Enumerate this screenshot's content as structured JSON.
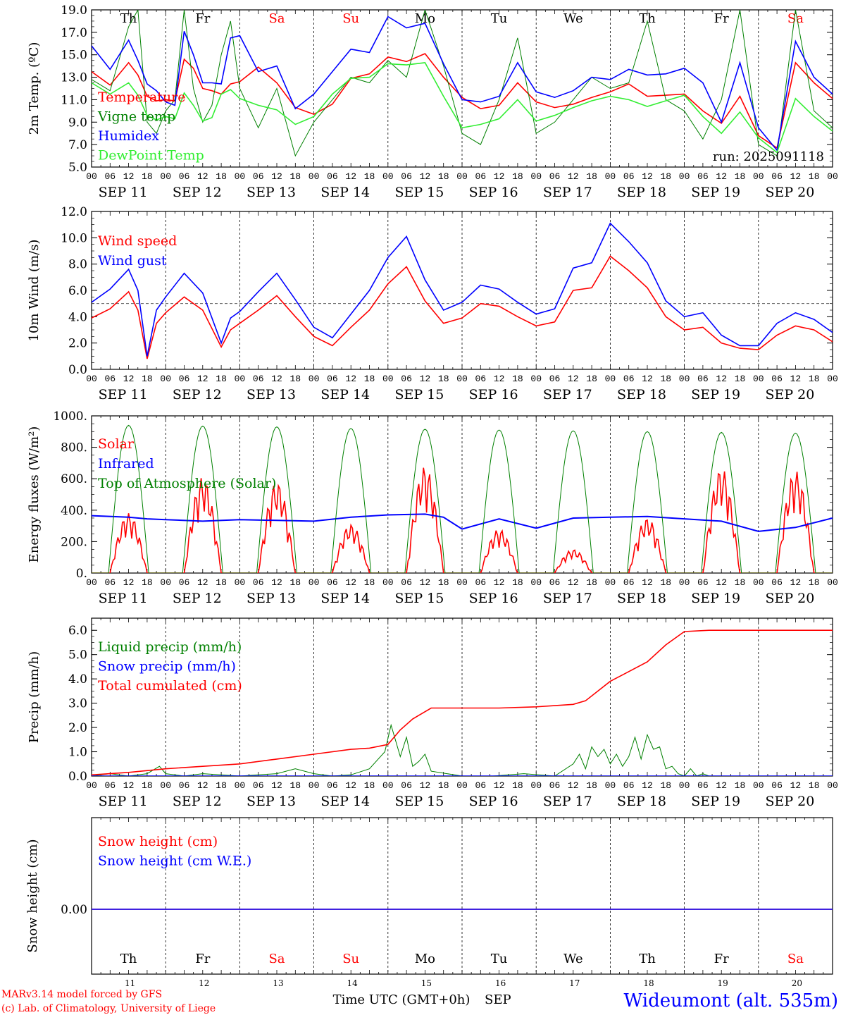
{
  "header": {
    "run": "run: 2025091118"
  },
  "footer": {
    "model_line": "MARv3.14 model forced by GFS",
    "lab_line": "(c) Lab. of Climatology, University of Liege",
    "xlabel": "Time UTC (GMT+0h)",
    "month": "SEP",
    "station": "Wideumont (alt. 535m)"
  },
  "days": {
    "weekday_labels": [
      "Th",
      "Fr",
      "Sa",
      "Su",
      "Mo",
      "Tu",
      "We",
      "Th",
      "Fr",
      "Sa"
    ],
    "weekend_flags": [
      false,
      false,
      true,
      true,
      false,
      false,
      false,
      false,
      false,
      true
    ],
    "date_labels": [
      "SEP 11",
      "SEP 12",
      "SEP 13",
      "SEP 14",
      "SEP 15",
      "SEP 16",
      "SEP 17",
      "SEP 18",
      "SEP 19",
      "SEP 20"
    ],
    "day_numbers": [
      "11",
      "12",
      "13",
      "14",
      "15",
      "16",
      "17",
      "18",
      "19",
      "20"
    ],
    "hour_ticks": [
      "00",
      "06",
      "12",
      "18"
    ],
    "end_tick": "00"
  },
  "colors": {
    "red": "#ff0000",
    "dark_green": "#008000",
    "blue": "#0000ff",
    "light_green": "#33ee33",
    "weekend": "#ff0000",
    "axis": "#000000"
  },
  "chart_data": [
    {
      "id": "temp",
      "type": "line",
      "ylabel": "2m Temp. (ºC)",
      "ylim": [
        5,
        19
      ],
      "yticks": [
        "5.0",
        "7.0",
        "9.0",
        "11.0",
        "13.0",
        "15.0",
        "17.0",
        "19.0"
      ],
      "ytick_values": [
        5,
        7,
        9,
        11,
        13,
        15,
        17,
        19
      ],
      "x_unit": "hours since SEP 11 00 UTC",
      "x": [
        0,
        6,
        12,
        15,
        18,
        21,
        24,
        27,
        30,
        33,
        36,
        39,
        42,
        45,
        48,
        54,
        60,
        66,
        72,
        78,
        84,
        90,
        96,
        102,
        108,
        114,
        120,
        126,
        132,
        138,
        144,
        150,
        156,
        162,
        168,
        174,
        180,
        186,
        192,
        198,
        204,
        210,
        216,
        222,
        228,
        234,
        240
      ],
      "series": [
        {
          "name": "Temperature",
          "color": "#ff0000",
          "values": [
            13.5,
            12.3,
            14.3,
            13.2,
            11.3,
            10.9,
            11.0,
            10.9,
            14.6,
            13.8,
            12.0,
            11.8,
            11.5,
            12.4,
            12.6,
            13.9,
            12.5,
            10.3,
            9.7,
            10.6,
            12.9,
            13.3,
            14.8,
            14.4,
            15.1,
            13.0,
            11.2,
            10.2,
            10.5,
            12.5,
            10.8,
            10.3,
            10.6,
            11.2,
            11.7,
            12.4,
            11.3,
            11.4,
            11.5,
            10.0,
            8.9,
            11.3,
            7.8,
            6.7,
            14.3,
            12.5,
            11.1
          ]
        },
        {
          "name": "Vigne temp",
          "color": "#008000",
          "values": [
            12.8,
            11.8,
            17.5,
            19.0,
            9.0,
            8.0,
            10.0,
            11.0,
            19.0,
            12.0,
            9.0,
            10.5,
            15.0,
            18.0,
            12.0,
            8.5,
            12.0,
            6.0,
            9.0,
            11.0,
            13.0,
            12.5,
            14.5,
            13.0,
            19.0,
            14.0,
            8.0,
            7.0,
            11.0,
            16.5,
            8.0,
            9.0,
            11.0,
            13.0,
            12.0,
            12.5,
            18.0,
            11.0,
            10.0,
            7.5,
            11.0,
            19.0,
            7.0,
            6.0,
            19.0,
            10.0,
            8.5
          ]
        },
        {
          "name": "Humidex",
          "color": "#0000ff",
          "values": [
            15.8,
            13.7,
            16.3,
            14.5,
            12.4,
            11.8,
            10.8,
            10.5,
            17.1,
            15.0,
            12.5,
            12.5,
            12.4,
            16.5,
            16.7,
            13.5,
            14.0,
            10.2,
            11.5,
            13.5,
            15.5,
            15.2,
            18.4,
            17.4,
            17.8,
            14.2,
            11.0,
            10.8,
            11.3,
            14.3,
            11.7,
            11.2,
            11.8,
            13.0,
            12.8,
            13.7,
            13.2,
            13.3,
            13.8,
            12.5,
            9.0,
            14.3,
            8.5,
            6.5,
            16.2,
            13.0,
            11.5
          ]
        },
        {
          "name": "DewPoint Temp",
          "color": "#33ee33",
          "values": [
            12.5,
            11.5,
            12.5,
            11.4,
            9.6,
            9.2,
            9.5,
            9.3,
            11.6,
            10.5,
            9.1,
            9.4,
            11.5,
            11.9,
            11.1,
            10.5,
            10.1,
            8.8,
            9.5,
            11.5,
            12.9,
            13.0,
            14.2,
            14.1,
            14.3,
            11.3,
            8.5,
            8.8,
            9.3,
            11.0,
            9.1,
            9.6,
            10.3,
            10.9,
            11.3,
            11.0,
            10.4,
            10.9,
            11.4,
            9.5,
            8.0,
            9.9,
            7.6,
            6.3,
            11.1,
            9.5,
            8.2
          ]
        }
      ]
    },
    {
      "id": "wind",
      "type": "line",
      "ylabel": "10m Wind (m/s)",
      "ylim": [
        0,
        12
      ],
      "yticks": [
        "0.0",
        "2.0",
        "4.0",
        "6.0",
        "8.0",
        "10.0",
        "12.0"
      ],
      "ytick_values": [
        0,
        2,
        4,
        6,
        8,
        10,
        12
      ],
      "ref_line": 5,
      "x_unit": "hours since SEP 11 00 UTC",
      "x": [
        0,
        6,
        12,
        15,
        18,
        21,
        24,
        30,
        36,
        42,
        45,
        48,
        54,
        60,
        66,
        72,
        78,
        84,
        90,
        96,
        102,
        108,
        114,
        120,
        126,
        132,
        138,
        144,
        150,
        156,
        162,
        168,
        174,
        180,
        186,
        192,
        198,
        204,
        210,
        216,
        222,
        228,
        234,
        240
      ],
      "series": [
        {
          "name": "Wind speed",
          "color": "#ff0000",
          "values": [
            3.9,
            4.6,
            5.9,
            4.5,
            0.8,
            3.5,
            4.3,
            5.5,
            4.5,
            1.7,
            3.0,
            3.5,
            4.5,
            5.6,
            4.0,
            2.5,
            1.8,
            3.2,
            4.5,
            6.5,
            7.8,
            5.2,
            3.5,
            3.9,
            5.0,
            4.8,
            4.0,
            3.3,
            3.6,
            6.0,
            6.2,
            8.6,
            7.5,
            6.2,
            4.0,
            3.0,
            3.2,
            2.0,
            1.6,
            1.5,
            2.6,
            3.3,
            3.0,
            2.1
          ]
        },
        {
          "name": "Wind gust",
          "color": "#0000ff",
          "values": [
            5.1,
            6.1,
            7.6,
            6.0,
            1.0,
            4.5,
            5.5,
            7.3,
            5.8,
            2.0,
            3.9,
            4.4,
            5.9,
            7.3,
            5.3,
            3.2,
            2.4,
            4.2,
            6.0,
            8.5,
            10.1,
            6.8,
            4.5,
            5.1,
            6.4,
            6.1,
            5.1,
            4.2,
            4.6,
            7.7,
            8.1,
            11.1,
            9.7,
            8.1,
            5.2,
            4.0,
            4.3,
            2.6,
            1.8,
            1.8,
            3.5,
            4.3,
            3.8,
            2.8
          ]
        }
      ]
    },
    {
      "id": "energy",
      "type": "line",
      "ylabel": "Energy fluxes (W/m²)",
      "ylim": [
        0,
        1000
      ],
      "yticks": [
        "0.",
        "200.",
        "400.",
        "600.",
        "800.",
        "1000."
      ],
      "ytick_values": [
        0,
        200,
        400,
        600,
        800,
        1000
      ],
      "x_unit": "hours since SEP 11 00 UTC",
      "toa_peak_values": [
        940,
        935,
        930,
        920,
        915,
        910,
        905,
        900,
        895,
        890
      ],
      "solar_daily_peak_values": [
        380,
        610,
        580,
        310,
        680,
        280,
        150,
        350,
        670,
        650
      ],
      "series": [
        {
          "name": "Solar",
          "color": "#ff0000"
        },
        {
          "name": "Infrared",
          "color": "#0000ff",
          "x": [
            0,
            12,
            18,
            24,
            36,
            48,
            60,
            72,
            84,
            96,
            108,
            114,
            120,
            132,
            144,
            156,
            168,
            180,
            192,
            204,
            216,
            228,
            240
          ],
          "values": [
            365,
            355,
            345,
            340,
            330,
            340,
            335,
            330,
            355,
            370,
            375,
            355,
            280,
            345,
            285,
            350,
            355,
            360,
            345,
            330,
            265,
            290,
            350
          ]
        },
        {
          "name": "Top of Atmosphere (Solar)",
          "color": "#008000"
        }
      ]
    },
    {
      "id": "precip",
      "type": "line",
      "ylabel": "Precip (mm/h)",
      "ylim": [
        0,
        6.5
      ],
      "yticks": [
        "0.0",
        "1.0",
        "2.0",
        "3.0",
        "4.0",
        "5.0",
        "6.0"
      ],
      "ytick_values": [
        0,
        1,
        2,
        3,
        4,
        5,
        6
      ],
      "x_unit": "hours since SEP 11 00 UTC",
      "series": [
        {
          "name": "Liquid precip (mm/h)",
          "color": "#008000",
          "x": [
            0,
            6,
            12,
            18,
            22,
            24,
            30,
            36,
            48,
            60,
            66,
            72,
            78,
            84,
            90,
            95,
            97,
            100,
            102,
            104,
            106,
            108,
            110,
            120,
            130,
            140,
            150,
            156,
            158,
            160,
            162,
            164,
            166,
            168,
            170,
            172,
            174,
            176,
            178,
            180,
            182,
            184,
            186,
            188,
            190,
            192,
            194,
            196,
            198,
            200,
            240
          ],
          "values": [
            0,
            0.1,
            0,
            0.1,
            0.4,
            0.1,
            0,
            0.1,
            0,
            0.1,
            0.3,
            0.1,
            0,
            0.05,
            0.3,
            1.0,
            2.1,
            0.8,
            1.6,
            0.4,
            0.6,
            0.9,
            0.2,
            0,
            0,
            0.1,
            0,
            0.5,
            0.9,
            0.3,
            1.2,
            0.8,
            1.1,
            0.5,
            0.9,
            0.4,
            0.8,
            1.6,
            0.7,
            1.7,
            1.1,
            1.2,
            0.3,
            0.4,
            0.1,
            0,
            0.3,
            0,
            0.1,
            0,
            0
          ]
        },
        {
          "name": "Snow precip (mm/h)",
          "color": "#0000ff",
          "x": [
            0,
            240
          ],
          "values": [
            0,
            0
          ]
        },
        {
          "name": "Total cumulated (cm)",
          "color": "#ff0000",
          "x": [
            0,
            12,
            24,
            36,
            48,
            60,
            72,
            84,
            90,
            96,
            100,
            104,
            110,
            120,
            132,
            144,
            150,
            156,
            160,
            168,
            174,
            180,
            186,
            192,
            200,
            210,
            240
          ],
          "values": [
            0.05,
            0.15,
            0.3,
            0.4,
            0.5,
            0.7,
            0.9,
            1.1,
            1.15,
            1.3,
            1.9,
            2.35,
            2.8,
            2.8,
            2.8,
            2.85,
            2.9,
            2.95,
            3.1,
            3.9,
            4.3,
            4.7,
            5.4,
            5.95,
            6.0,
            6.0,
            6.0
          ]
        }
      ]
    },
    {
      "id": "snow",
      "type": "line",
      "ylabel": "Snow height (cm)",
      "yticks": [
        "0.00"
      ],
      "ytick_values": [
        0
      ],
      "x_unit": "hours since SEP 11 00 UTC",
      "series": [
        {
          "name": "Snow height (cm)",
          "color": "#ff0000",
          "x": [
            0,
            240
          ],
          "values": [
            0,
            0
          ]
        },
        {
          "name": "Snow height (cm W.E.)",
          "color": "#0000ff",
          "x": [
            0,
            240
          ],
          "values": [
            0,
            0
          ]
        }
      ]
    }
  ]
}
